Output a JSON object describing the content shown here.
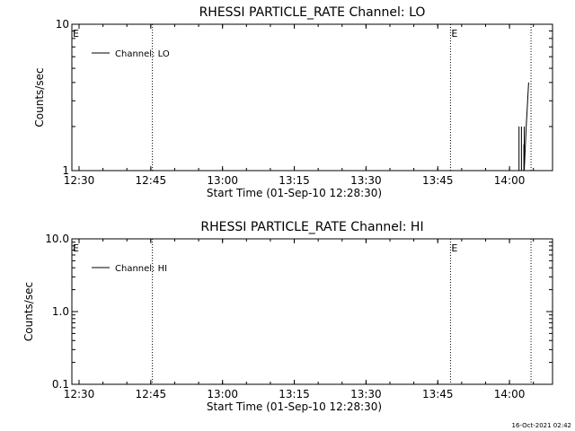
{
  "timestamp": "16-Oct-2021 02:42",
  "chart_data": [
    {
      "type": "line",
      "title": "RHESSI PARTICLE_RATE Channel: LO",
      "xlabel": "Start Time (01-Sep-10 12:28:30)",
      "ylabel": "Counts/sec",
      "y_scale": "log",
      "ylim": [
        1,
        10
      ],
      "xlim": [
        "12:28:30",
        "14:09:00"
      ],
      "x_ticks": [
        "12:30",
        "12:45",
        "13:00",
        "13:15",
        "13:30",
        "13:45",
        "14:00"
      ],
      "y_ticks": [
        {
          "value": 1,
          "label": "1"
        },
        {
          "value": 10,
          "label": "10"
        }
      ],
      "legend": {
        "position": "top-left",
        "entries": [
          "Channel: LO"
        ]
      },
      "event_markers": [
        {
          "time": "12:28:30",
          "label": "E",
          "line": false
        },
        {
          "time": "12:45:20",
          "label": "",
          "line": true
        },
        {
          "time": "13:47:40",
          "label": "E",
          "line": true
        },
        {
          "time": "14:04:30",
          "label": "",
          "line": true
        }
      ],
      "series": [
        {
          "name": "Channel: LO",
          "x": [
            "14:02:00",
            "14:02:00",
            "14:02:00",
            "14:02:30",
            "14:02:30",
            "14:02:30",
            "14:03:00",
            "14:03:00",
            "14:03:05",
            "14:03:05",
            "14:03:05",
            "14:03:30",
            "14:04:00"
          ],
          "y": [
            1,
            2,
            1,
            1,
            2,
            1,
            1,
            1.5,
            1.5,
            2,
            1,
            2,
            4
          ]
        }
      ]
    },
    {
      "type": "line",
      "title": "RHESSI PARTICLE_RATE Channel: HI",
      "xlabel": "Start Time (01-Sep-10 12:28:30)",
      "ylabel": "Counts/sec",
      "y_scale": "log",
      "ylim": [
        0.1,
        10
      ],
      "xlim": [
        "12:28:30",
        "14:09:00"
      ],
      "x_ticks": [
        "12:30",
        "12:45",
        "13:00",
        "13:15",
        "13:30",
        "13:45",
        "14:00"
      ],
      "y_ticks": [
        {
          "value": 0.1,
          "label": "0.1"
        },
        {
          "value": 1,
          "label": "1.0"
        },
        {
          "value": 10,
          "label": "10.0"
        }
      ],
      "legend": {
        "position": "top-left",
        "entries": [
          "Channel: HI"
        ]
      },
      "event_markers": [
        {
          "time": "12:28:30",
          "label": "E",
          "line": false
        },
        {
          "time": "12:45:20",
          "label": "",
          "line": true
        },
        {
          "time": "13:47:40",
          "label": "E",
          "line": true
        },
        {
          "time": "14:04:30",
          "label": "",
          "line": true
        }
      ],
      "series": [
        {
          "name": "Channel: HI",
          "x": [],
          "y": []
        }
      ]
    }
  ]
}
